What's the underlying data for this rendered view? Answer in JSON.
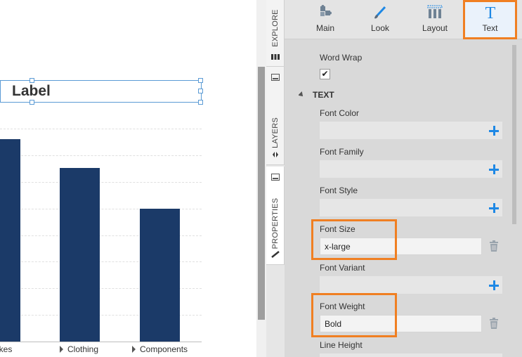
{
  "canvas": {
    "label_text": "Label",
    "chart_data": {
      "type": "bar",
      "categories": [
        "Bikes",
        "Clothing",
        "Components"
      ],
      "visible_tick_labels": [
        "ikes",
        "Clothing",
        "Components"
      ],
      "values": [
        285,
        245,
        187
      ],
      "ylim": [
        0,
        300
      ],
      "bar_color": "#1b3a68",
      "grid": true
    }
  },
  "vtabs": {
    "explore": "EXPLORE",
    "layers": "LAYERS",
    "properties": "PROPERTIES"
  },
  "toolbar": {
    "main": "Main",
    "look": "Look",
    "layout": "Layout",
    "text": "Text",
    "accent_color": "#f07f22"
  },
  "props": {
    "word_wrap_label": "Word Wrap",
    "word_wrap_checked": "✔",
    "section_text": "TEXT",
    "font_color_label": "Font Color",
    "font_family_label": "Font Family",
    "font_style_label": "Font Style",
    "font_size_label": "Font Size",
    "font_size_value": "x-large",
    "font_variant_label": "Font Variant",
    "font_weight_label": "Font Weight",
    "font_weight_value": "Bold",
    "line_height_label": "Line Height"
  }
}
